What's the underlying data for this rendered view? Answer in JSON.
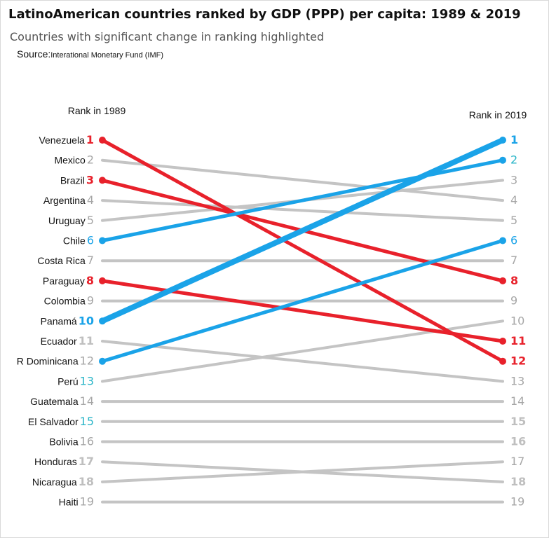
{
  "title": "LatinoAmerican countries ranked by GDP (PPP) per capita: 1989 & 2019",
  "subtitle": "Countries with significant change in ranking highlighted",
  "source": {
    "label": "Source:",
    "value": "Interational Monetary Fund (IMF)"
  },
  "chart_data": {
    "type": "slope",
    "x": [
      "Rank in 1989",
      "Rank in 2019"
    ],
    "y_range": [
      1,
      19
    ],
    "y_inverted": true,
    "grid": false,
    "series": [
      {
        "name": "Venezuela",
        "values": [
          1,
          12
        ],
        "highlight": "fall"
      },
      {
        "name": "Mexico",
        "values": [
          2,
          4
        ],
        "highlight": "none"
      },
      {
        "name": "Brazil",
        "values": [
          3,
          8
        ],
        "highlight": "fall"
      },
      {
        "name": "Argentina",
        "values": [
          4,
          5
        ],
        "highlight": "none"
      },
      {
        "name": "Uruguay",
        "values": [
          5,
          3
        ],
        "highlight": "none"
      },
      {
        "name": "Chile",
        "values": [
          6,
          2
        ],
        "highlight": "rise"
      },
      {
        "name": "Costa Rica",
        "values": [
          7,
          7
        ],
        "highlight": "none"
      },
      {
        "name": "Paraguay",
        "values": [
          8,
          11
        ],
        "highlight": "fall"
      },
      {
        "name": "Colombia",
        "values": [
          9,
          9
        ],
        "highlight": "none"
      },
      {
        "name": "Panamá",
        "values": [
          10,
          1
        ],
        "highlight": "rise-strong"
      },
      {
        "name": "Ecuador",
        "values": [
          11,
          13
        ],
        "highlight": "none"
      },
      {
        "name": "R Dominicana",
        "values": [
          12,
          6
        ],
        "highlight": "rise"
      },
      {
        "name": "Perú",
        "values": [
          13,
          10
        ],
        "highlight": "none"
      },
      {
        "name": "Guatemala",
        "values": [
          14,
          14
        ],
        "highlight": "none"
      },
      {
        "name": "El Salvador",
        "values": [
          15,
          15
        ],
        "highlight": "none"
      },
      {
        "name": "Bolivia",
        "values": [
          16,
          16
        ],
        "highlight": "none"
      },
      {
        "name": "Honduras",
        "values": [
          17,
          18
        ],
        "highlight": "none"
      },
      {
        "name": "Nicaragua",
        "values": [
          18,
          17
        ],
        "highlight": "none"
      },
      {
        "name": "Haiti",
        "values": [
          19,
          19
        ],
        "highlight": "none"
      }
    ],
    "left_rank_colors": [
      "#e8212b",
      "#a6a6a6",
      "#e8212b",
      "#a6a6a6",
      "#a6a6a6",
      "#1aa3e8",
      "#a6a6a6",
      "#e8212b",
      "#a6a6a6",
      "#1aa3e8",
      "#bfbfbf",
      "#a6a6a6",
      "#2bb6c8",
      "#a6a6a6",
      "#2bb6c8",
      "#a6a6a6",
      "#bfbfbf",
      "#bfbfbf",
      "#a6a6a6"
    ],
    "right_rank_colors": [
      "#1aa3e8",
      "#2bb6c8",
      "#a6a6a6",
      "#a6a6a6",
      "#a6a6a6",
      "#1aa3e8",
      "#a6a6a6",
      "#e8212b",
      "#a6a6a6",
      "#a6a6a6",
      "#e8212b",
      "#e8212b",
      "#a6a6a6",
      "#a6a6a6",
      "#bfbfbf",
      "#bfbfbf",
      "#a6a6a6",
      "#bfbfbf",
      "#a6a6a6"
    ],
    "bold_left_ranks": [
      1,
      3,
      8,
      10,
      11,
      17,
      18
    ],
    "bold_right_ranks": [
      1,
      8,
      11,
      12,
      15,
      16,
      18
    ],
    "colors": {
      "fall": "#e8212b",
      "rise": "#1aa3e8",
      "none": "#c4c4c4"
    }
  }
}
